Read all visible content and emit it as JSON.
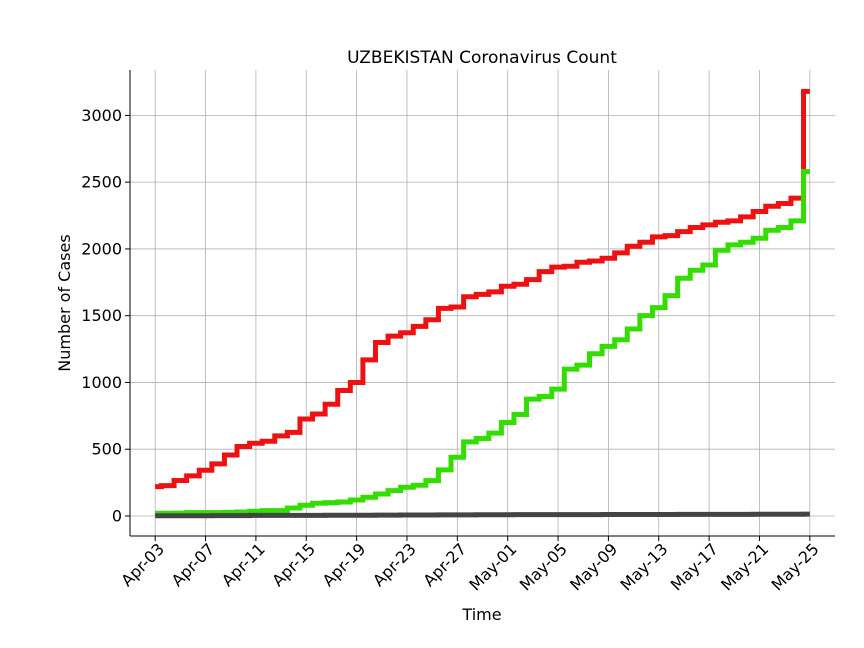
{
  "chart_data": {
    "type": "line",
    "title": "UZBEKISTAN Coronavirus Count",
    "xlabel": "Time",
    "ylabel": "Number of Cases",
    "ylim": [
      -150,
      3340
    ],
    "xlim": [
      "2020-04-01",
      "2020-05-27"
    ],
    "grid": true,
    "step": true,
    "x_ticks": [
      "Apr-03",
      "Apr-07",
      "Apr-11",
      "Apr-15",
      "Apr-19",
      "Apr-23",
      "Apr-27",
      "May-01",
      "May-05",
      "May-09",
      "May-13",
      "May-17",
      "May-21",
      "May-25"
    ],
    "x_tick_dates": [
      "2020-04-03",
      "2020-04-07",
      "2020-04-11",
      "2020-04-15",
      "2020-04-19",
      "2020-04-23",
      "2020-04-27",
      "2020-05-01",
      "2020-05-05",
      "2020-05-09",
      "2020-05-13",
      "2020-05-17",
      "2020-05-21",
      "2020-05-25"
    ],
    "y_ticks": [
      0,
      500,
      1000,
      1500,
      2000,
      2500,
      3000
    ],
    "y_tick_labels": [
      "0",
      "500",
      "1000",
      "1500",
      "2000",
      "2500",
      "3000"
    ],
    "dates": [
      "2020-04-03",
      "2020-04-04",
      "2020-04-05",
      "2020-04-06",
      "2020-04-07",
      "2020-04-08",
      "2020-04-09",
      "2020-04-10",
      "2020-04-11",
      "2020-04-12",
      "2020-04-13",
      "2020-04-14",
      "2020-04-15",
      "2020-04-16",
      "2020-04-17",
      "2020-04-18",
      "2020-04-19",
      "2020-04-20",
      "2020-04-21",
      "2020-04-22",
      "2020-04-23",
      "2020-04-24",
      "2020-04-25",
      "2020-04-26",
      "2020-04-27",
      "2020-04-28",
      "2020-04-29",
      "2020-04-30",
      "2020-05-01",
      "2020-05-02",
      "2020-05-03",
      "2020-05-04",
      "2020-05-05",
      "2020-05-06",
      "2020-05-07",
      "2020-05-08",
      "2020-05-09",
      "2020-05-10",
      "2020-05-11",
      "2020-05-12",
      "2020-05-13",
      "2020-05-14",
      "2020-05-15",
      "2020-05-16",
      "2020-05-17",
      "2020-05-18",
      "2020-05-19",
      "2020-05-20",
      "2020-05-21",
      "2020-05-22",
      "2020-05-23",
      "2020-05-24",
      "2020-05-25"
    ],
    "series": [
      {
        "color": "#ee1111",
        "values": [
          220,
          227,
          266,
          300,
          342,
          390,
          457,
          520,
          545,
          560,
          600,
          626,
          726,
          764,
          837,
          940,
          1000,
          1169,
          1299,
          1347,
          1372,
          1420,
          1470,
          1555,
          1565,
          1642,
          1660,
          1678,
          1720,
          1735,
          1770,
          1830,
          1864,
          1870,
          1900,
          1910,
          1930,
          1970,
          2020,
          2050,
          2090,
          2100,
          2130,
          2160,
          2180,
          2200,
          2210,
          2240,
          2280,
          2320,
          2340,
          2380,
          3180
        ]
      },
      {
        "color": "#33dd00",
        "values": [
          20,
          20,
          21,
          25,
          25,
          25,
          27,
          30,
          35,
          40,
          40,
          60,
          80,
          95,
          100,
          105,
          120,
          140,
          165,
          190,
          215,
          230,
          265,
          345,
          440,
          555,
          580,
          620,
          700,
          760,
          875,
          895,
          950,
          1100,
          1130,
          1215,
          1270,
          1320,
          1400,
          1500,
          1560,
          1650,
          1780,
          1840,
          1880,
          1990,
          2030,
          2050,
          2080,
          2140,
          2160,
          2210,
          2580
        ]
      },
      {
        "color": "#444444",
        "values": [
          2,
          2,
          2,
          2,
          2,
          3,
          3,
          3,
          4,
          4,
          4,
          4,
          4,
          4,
          5,
          5,
          5,
          5,
          6,
          6,
          7,
          7,
          7,
          8,
          8,
          8,
          9,
          9,
          9,
          10,
          10,
          10,
          10,
          10,
          10,
          10,
          11,
          11,
          11,
          11,
          11,
          11,
          12,
          12,
          12,
          12,
          12,
          12,
          13,
          13,
          13,
          13,
          14
        ]
      }
    ]
  }
}
